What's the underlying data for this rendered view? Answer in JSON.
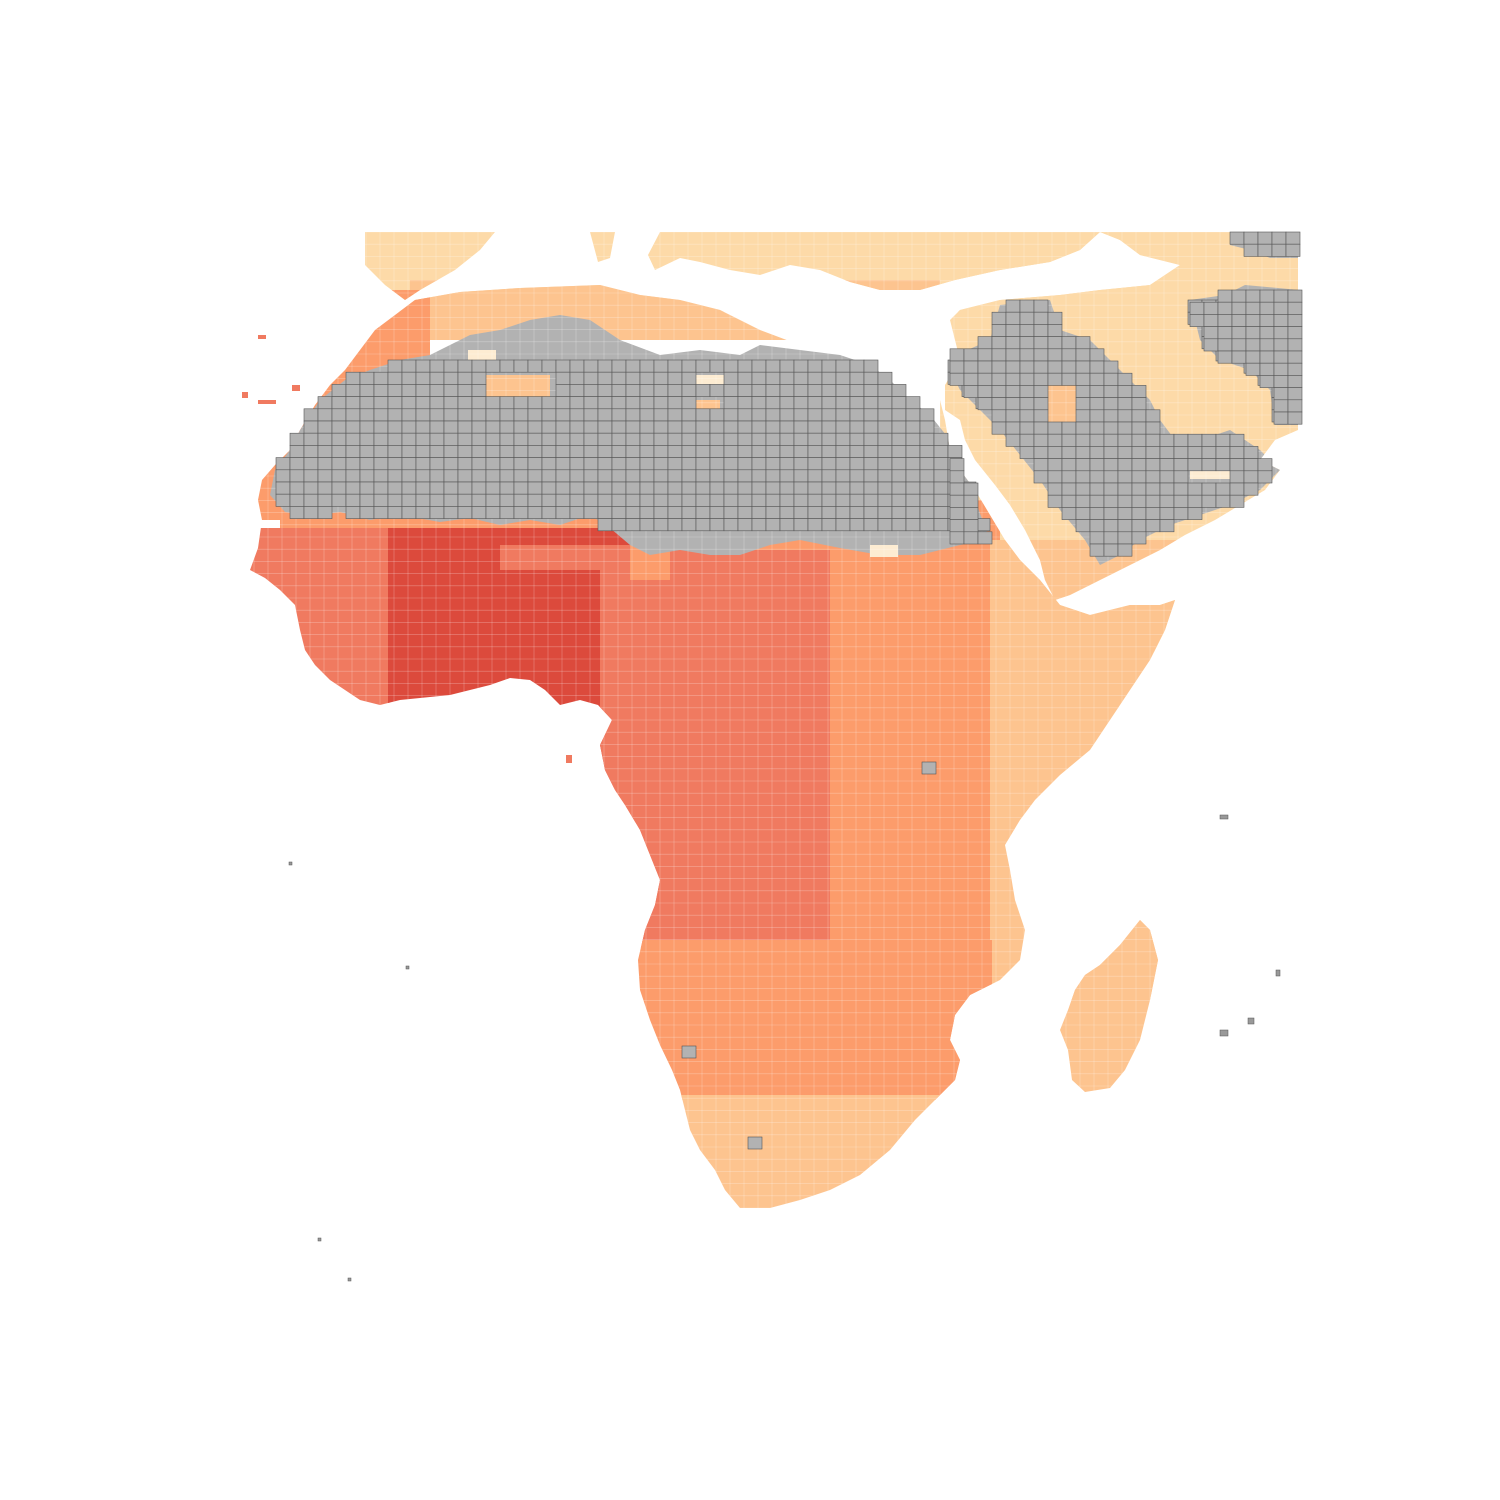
{
  "map": {
    "type": "choropleth-grid",
    "title": "",
    "legend": null,
    "palette": {
      "class_0": "#fdecd2",
      "class_1": "#fddaa8",
      "class_2": "#fdc48f",
      "class_3": "#fc9c6b",
      "class_4": "#f07a60",
      "class_5": "#dc4a3c",
      "no_data": "#b2b2b2",
      "no_data_border": "#555555",
      "water": "#ffffff"
    },
    "regions": [
      {
        "name": "north-mediterranean-coast",
        "class": "class_1"
      },
      {
        "name": "maghreb-northwest",
        "class": "class_3"
      },
      {
        "name": "maghreb-north",
        "class": "class_2"
      },
      {
        "name": "middle-east",
        "class": "class_1"
      },
      {
        "name": "sahara",
        "class": "no_data"
      },
      {
        "name": "arabian-interior",
        "class": "no_data"
      },
      {
        "name": "west-africa-coast",
        "class": "class_4"
      },
      {
        "name": "gulf-of-guinea",
        "class": "class_5"
      },
      {
        "name": "central-africa",
        "class": "class_4"
      },
      {
        "name": "east-central-africa",
        "class": "class_3"
      },
      {
        "name": "horn-of-africa",
        "class": "class_2"
      },
      {
        "name": "southern-africa",
        "class": "class_3"
      },
      {
        "name": "south-africa",
        "class": "class_2"
      },
      {
        "name": "madagascar",
        "class": "class_2"
      },
      {
        "name": "sahel-fringe",
        "class": "class_3"
      }
    ],
    "isolated_no_data_cells": 3
  }
}
